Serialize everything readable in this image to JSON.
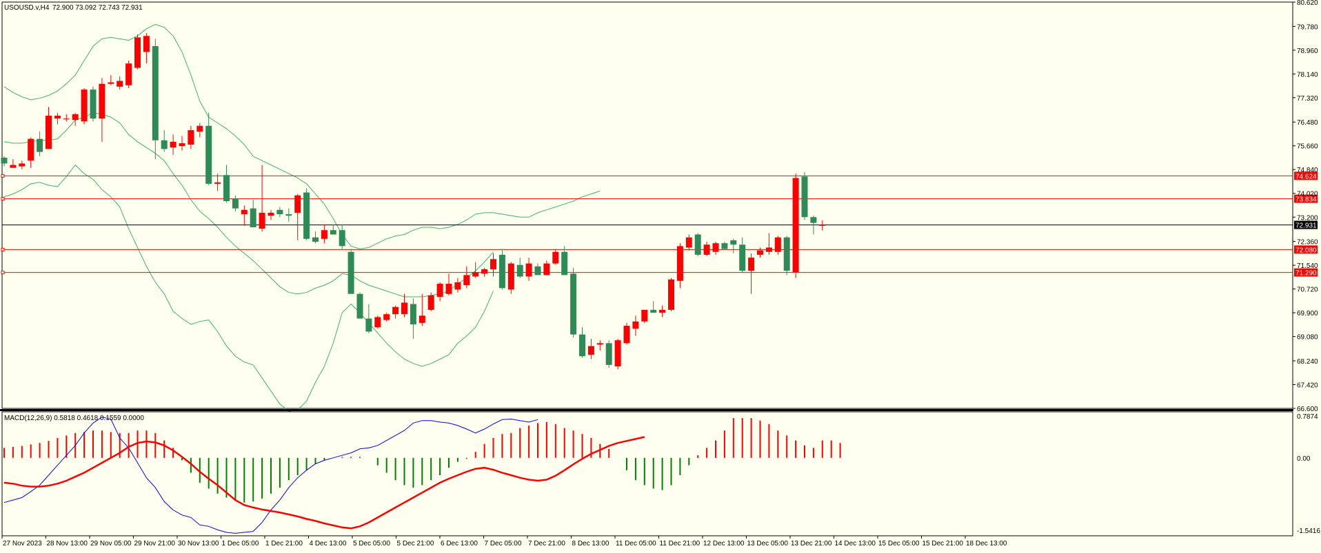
{
  "header": {
    "symbol_text": "USOUSD.v,H4",
    "ohlc_text": "72.900 73.092 72.743 72.931"
  },
  "macd": {
    "label": "MACD(12,26,9) 0.5818 0.4618 0.1559 0.0000"
  },
  "colors": {
    "background": "#fffff0",
    "bull": "#2e8b57",
    "bear": "#ff0000",
    "bands": "#3cb371",
    "hline": "#ff0000",
    "macd_signal": "#0000ff",
    "macd_main": "#ff0000",
    "hist_pos": "#ff0000",
    "hist_neg": "#008000"
  },
  "chart_data": {
    "type": "candlestick",
    "price_axis": {
      "min": 66.6,
      "max": 80.62,
      "ticks": [
        "80.620",
        "79.780",
        "78.960",
        "78.140",
        "77.320",
        "76.480",
        "75.660",
        "74.840",
        "74.020",
        "73.200",
        "72.360",
        "71.540",
        "70.720",
        "69.900",
        "69.080",
        "68.240",
        "67.420",
        "66.600"
      ]
    },
    "current_price": "72.931",
    "horizontal_levels": [
      "74.624",
      "73.834",
      "72.080",
      "71.290"
    ],
    "time_labels": [
      "27 Nov 2023",
      "28 Nov 13:00",
      "29 Nov 05:00",
      "29 Nov 21:00",
      "30 Nov 13:00",
      "1 Dec 05:00",
      "1 Dec 21:00",
      "4 Dec 13:00",
      "5 Dec 05:00",
      "5 Dec 21:00",
      "6 Dec 13:00",
      "7 Dec 05:00",
      "7 Dec 21:00",
      "8 Dec 13:00",
      "11 Dec 05:00",
      "11 Dec 21:00",
      "12 Dec 13:00",
      "13 Dec 05:00",
      "13 Dec 21:00",
      "14 Dec 13:00",
      "15 Dec 05:00",
      "15 Dec 21:00",
      "18 Dec 13:00"
    ],
    "candles": [
      {
        "o": 75.25,
        "h": 75.3,
        "l": 74.95,
        "c": 75.05
      },
      {
        "o": 74.9,
        "h": 75.2,
        "l": 74.9,
        "c": 75.0
      },
      {
        "o": 74.95,
        "h": 75.15,
        "l": 74.85,
        "c": 75.05
      },
      {
        "o": 75.15,
        "h": 75.95,
        "l": 74.9,
        "c": 75.9
      },
      {
        "o": 75.9,
        "h": 76.15,
        "l": 75.3,
        "c": 75.45
      },
      {
        "o": 75.55,
        "h": 77.0,
        "l": 75.55,
        "c": 76.7
      },
      {
        "o": 76.6,
        "h": 76.8,
        "l": 76.4,
        "c": 76.7
      },
      {
        "o": 76.6,
        "h": 76.75,
        "l": 76.5,
        "c": 76.6
      },
      {
        "o": 76.55,
        "h": 76.8,
        "l": 76.35,
        "c": 76.75
      },
      {
        "o": 76.5,
        "h": 77.65,
        "l": 76.4,
        "c": 77.6
      },
      {
        "o": 77.6,
        "h": 77.7,
        "l": 76.5,
        "c": 76.6
      },
      {
        "o": 76.6,
        "h": 78.0,
        "l": 75.8,
        "c": 77.8
      },
      {
        "o": 77.8,
        "h": 78.1,
        "l": 77.75,
        "c": 77.85
      },
      {
        "o": 77.7,
        "h": 78.05,
        "l": 77.6,
        "c": 77.9
      },
      {
        "o": 77.75,
        "h": 78.6,
        "l": 77.65,
        "c": 78.5
      },
      {
        "o": 78.35,
        "h": 79.5,
        "l": 78.3,
        "c": 79.4
      },
      {
        "o": 78.9,
        "h": 79.55,
        "l": 78.5,
        "c": 79.45
      },
      {
        "o": 79.1,
        "h": 79.35,
        "l": 75.2,
        "c": 75.85
      },
      {
        "o": 75.85,
        "h": 76.2,
        "l": 75.45,
        "c": 75.55
      },
      {
        "o": 75.6,
        "h": 76.05,
        "l": 75.35,
        "c": 75.8
      },
      {
        "o": 75.65,
        "h": 76.0,
        "l": 75.5,
        "c": 75.75
      },
      {
        "o": 75.7,
        "h": 76.35,
        "l": 75.55,
        "c": 76.2
      },
      {
        "o": 76.15,
        "h": 76.45,
        "l": 75.95,
        "c": 76.35
      },
      {
        "o": 76.35,
        "h": 76.8,
        "l": 74.3,
        "c": 74.35
      },
      {
        "o": 74.35,
        "h": 74.7,
        "l": 74.1,
        "c": 74.4
      },
      {
        "o": 74.65,
        "h": 75.0,
        "l": 73.7,
        "c": 73.75
      },
      {
        "o": 73.85,
        "h": 73.95,
        "l": 73.4,
        "c": 73.5
      },
      {
        "o": 73.3,
        "h": 73.6,
        "l": 72.9,
        "c": 73.45
      },
      {
        "o": 73.5,
        "h": 73.8,
        "l": 72.9,
        "c": 72.85
      },
      {
        "o": 72.8,
        "h": 75.0,
        "l": 72.7,
        "c": 73.35
      },
      {
        "o": 73.25,
        "h": 73.45,
        "l": 73.1,
        "c": 73.35
      },
      {
        "o": 73.45,
        "h": 73.55,
        "l": 73.2,
        "c": 73.3
      },
      {
        "o": 73.3,
        "h": 73.5,
        "l": 73.05,
        "c": 73.25
      },
      {
        "o": 73.35,
        "h": 74.0,
        "l": 72.4,
        "c": 73.95
      },
      {
        "o": 74.05,
        "h": 74.2,
        "l": 72.4,
        "c": 72.45
      },
      {
        "o": 72.5,
        "h": 72.7,
        "l": 72.3,
        "c": 72.35
      },
      {
        "o": 72.45,
        "h": 72.95,
        "l": 72.3,
        "c": 72.75
      },
      {
        "o": 72.75,
        "h": 72.95,
        "l": 72.6,
        "c": 72.6
      },
      {
        "o": 72.75,
        "h": 72.95,
        "l": 72.1,
        "c": 72.2
      },
      {
        "o": 72.0,
        "h": 72.1,
        "l": 70.6,
        "c": 70.55
      },
      {
        "o": 70.55,
        "h": 70.6,
        "l": 69.7,
        "c": 69.7
      },
      {
        "o": 69.7,
        "h": 70.2,
        "l": 69.2,
        "c": 69.25
      },
      {
        "o": 69.4,
        "h": 69.8,
        "l": 69.35,
        "c": 69.75
      },
      {
        "o": 69.65,
        "h": 69.9,
        "l": 69.6,
        "c": 69.85
      },
      {
        "o": 69.85,
        "h": 70.15,
        "l": 69.7,
        "c": 70.1
      },
      {
        "o": 69.85,
        "h": 70.55,
        "l": 69.75,
        "c": 70.25
      },
      {
        "o": 70.2,
        "h": 70.4,
        "l": 69.0,
        "c": 69.5
      },
      {
        "o": 69.55,
        "h": 70.55,
        "l": 69.45,
        "c": 69.8
      },
      {
        "o": 70.0,
        "h": 70.6,
        "l": 69.95,
        "c": 70.5
      },
      {
        "o": 70.45,
        "h": 70.95,
        "l": 70.3,
        "c": 70.9
      },
      {
        "o": 70.55,
        "h": 71.25,
        "l": 70.5,
        "c": 70.9
      },
      {
        "o": 70.7,
        "h": 71.1,
        "l": 70.6,
        "c": 70.95
      },
      {
        "o": 70.85,
        "h": 71.5,
        "l": 70.75,
        "c": 71.2
      },
      {
        "o": 71.15,
        "h": 71.65,
        "l": 71.1,
        "c": 71.3
      },
      {
        "o": 71.25,
        "h": 71.45,
        "l": 71.15,
        "c": 71.4
      },
      {
        "o": 71.4,
        "h": 71.95,
        "l": 71.15,
        "c": 71.75
      },
      {
        "o": 71.9,
        "h": 72.1,
        "l": 70.7,
        "c": 70.75
      },
      {
        "o": 70.7,
        "h": 71.65,
        "l": 70.55,
        "c": 71.6
      },
      {
        "o": 71.55,
        "h": 71.8,
        "l": 71.1,
        "c": 71.15
      },
      {
        "o": 71.15,
        "h": 71.8,
        "l": 71.0,
        "c": 71.6
      },
      {
        "o": 71.5,
        "h": 71.6,
        "l": 71.2,
        "c": 71.2
      },
      {
        "o": 71.2,
        "h": 71.7,
        "l": 71.2,
        "c": 71.6
      },
      {
        "o": 71.6,
        "h": 72.1,
        "l": 71.55,
        "c": 72.0
      },
      {
        "o": 72.0,
        "h": 72.2,
        "l": 71.2,
        "c": 71.2
      },
      {
        "o": 71.25,
        "h": 71.45,
        "l": 69.05,
        "c": 69.15
      },
      {
        "o": 69.15,
        "h": 69.4,
        "l": 68.35,
        "c": 68.4
      },
      {
        "o": 68.45,
        "h": 69.0,
        "l": 68.3,
        "c": 68.75
      },
      {
        "o": 68.8,
        "h": 68.95,
        "l": 68.6,
        "c": 68.85
      },
      {
        "o": 68.85,
        "h": 68.95,
        "l": 68.0,
        "c": 68.1
      },
      {
        "o": 68.05,
        "h": 69.0,
        "l": 67.95,
        "c": 68.95
      },
      {
        "o": 68.85,
        "h": 69.55,
        "l": 68.8,
        "c": 69.45
      },
      {
        "o": 69.35,
        "h": 69.8,
        "l": 69.1,
        "c": 69.6
      },
      {
        "o": 69.6,
        "h": 70.0,
        "l": 69.55,
        "c": 70.0
      },
      {
        "o": 70.0,
        "h": 70.3,
        "l": 69.9,
        "c": 69.9
      },
      {
        "o": 69.9,
        "h": 70.15,
        "l": 69.75,
        "c": 70.0
      },
      {
        "o": 70.0,
        "h": 71.1,
        "l": 69.95,
        "c": 71.05
      },
      {
        "o": 71.0,
        "h": 72.3,
        "l": 70.75,
        "c": 72.2
      },
      {
        "o": 72.15,
        "h": 72.6,
        "l": 72.05,
        "c": 72.5
      },
      {
        "o": 72.6,
        "h": 72.65,
        "l": 71.85,
        "c": 71.9
      },
      {
        "o": 71.9,
        "h": 72.35,
        "l": 71.85,
        "c": 72.25
      },
      {
        "o": 72.0,
        "h": 72.35,
        "l": 71.9,
        "c": 72.3
      },
      {
        "o": 72.3,
        "h": 72.35,
        "l": 72.1,
        "c": 72.1
      },
      {
        "o": 72.4,
        "h": 72.45,
        "l": 71.95,
        "c": 72.25
      },
      {
        "o": 72.25,
        "h": 72.5,
        "l": 71.3,
        "c": 71.35
      },
      {
        "o": 71.35,
        "h": 71.95,
        "l": 70.55,
        "c": 71.8
      },
      {
        "o": 71.9,
        "h": 72.15,
        "l": 71.8,
        "c": 72.05
      },
      {
        "o": 72.0,
        "h": 72.65,
        "l": 71.9,
        "c": 72.15
      },
      {
        "o": 72.0,
        "h": 72.55,
        "l": 71.9,
        "c": 72.5
      },
      {
        "o": 72.5,
        "h": 72.55,
        "l": 71.2,
        "c": 71.35
      },
      {
        "o": 71.3,
        "h": 74.7,
        "l": 71.1,
        "c": 74.55
      },
      {
        "o": 74.6,
        "h": 74.75,
        "l": 73.1,
        "c": 73.2
      },
      {
        "o": 73.2,
        "h": 73.25,
        "l": 72.6,
        "c": 73.0
      },
      {
        "o": 72.9,
        "h": 73.09,
        "l": 72.74,
        "c": 72.93
      }
    ],
    "bollinger": {
      "upper": [
        77.7,
        77.5,
        77.35,
        77.25,
        77.3,
        77.4,
        77.55,
        77.8,
        78.1,
        78.6,
        79.1,
        79.35,
        79.4,
        79.35,
        79.3,
        79.45,
        79.7,
        79.85,
        79.75,
        79.45,
        78.9,
        78.1,
        77.2,
        76.65,
        76.45,
        76.25,
        76.0,
        75.7,
        75.3,
        75.15,
        75.0,
        74.85,
        74.7,
        74.55,
        74.35,
        74.0,
        73.65,
        73.15,
        72.6,
        72.2,
        72.1,
        72.15,
        72.3,
        72.45,
        72.55,
        72.6,
        72.75,
        72.85,
        72.85,
        72.8,
        72.85,
        72.95,
        73.1,
        73.3,
        73.35,
        73.35,
        73.3,
        73.25,
        73.2,
        73.2,
        73.35,
        73.45,
        73.55,
        73.65,
        73.75,
        73.9,
        74.0,
        74.1
      ],
      "middle": [
        75.8,
        75.75,
        75.75,
        75.8,
        75.85,
        75.85,
        75.9,
        76.2,
        76.55,
        76.65,
        76.8,
        76.75,
        76.65,
        76.45,
        76.05,
        75.8,
        75.6,
        75.4,
        75.15,
        74.7,
        74.3,
        73.8,
        73.4,
        73.15,
        72.85,
        72.5,
        72.2,
        71.95,
        71.7,
        71.4,
        71.1,
        70.8,
        70.6,
        70.55,
        70.6,
        70.75,
        70.85,
        71.0,
        71.25,
        71.2,
        71.0,
        70.85,
        70.75,
        70.65,
        70.55,
        70.45,
        70.45,
        70.45,
        70.5,
        70.55,
        70.65,
        70.9,
        71.1,
        71.35,
        71.65,
        72.0
      ]
    },
    "macd_indicator": {
      "y_range": [
        -1.5416,
        0.7874
      ],
      "ticks": [
        "0.7874",
        "0.00",
        "-1.5416"
      ],
      "histogram": [
        0.2,
        0.22,
        0.24,
        0.27,
        0.3,
        0.34,
        0.4,
        0.45,
        0.5,
        0.52,
        0.55,
        0.55,
        0.52,
        0.5,
        0.5,
        0.55,
        0.55,
        0.5,
        0.35,
        0.2,
        -0.05,
        -0.3,
        -0.5,
        -0.62,
        -0.72,
        -0.8,
        -0.85,
        -0.9,
        -0.88,
        -0.82,
        -0.72,
        -0.6,
        -0.45,
        -0.35,
        -0.25,
        -0.12,
        -0.05,
        0.0,
        0.02,
        0.02,
        0.02,
        0.0,
        -0.15,
        -0.3,
        -0.45,
        -0.55,
        -0.6,
        -0.55,
        -0.45,
        -0.35,
        -0.2,
        -0.08,
        -0.02,
        0.12,
        0.28,
        0.4,
        0.48,
        0.5,
        0.6,
        0.65,
        0.7,
        0.72,
        0.68,
        0.6,
        0.55,
        0.48,
        0.4,
        0.28,
        0.18,
        0.0,
        -0.25,
        -0.45,
        -0.55,
        -0.62,
        -0.65,
        -0.55,
        -0.35,
        -0.15,
        0.05,
        0.2,
        0.35,
        0.55,
        0.8,
        0.8,
        0.8,
        0.75,
        0.68,
        0.55,
        0.45,
        0.35,
        0.25,
        0.2,
        0.35,
        0.35,
        0.3
      ],
      "main": [
        -0.5,
        -0.52,
        -0.56,
        -0.58,
        -0.58,
        -0.56,
        -0.52,
        -0.46,
        -0.38,
        -0.3,
        -0.2,
        -0.1,
        0.0,
        0.1,
        0.22,
        0.3,
        0.33,
        0.31,
        0.25,
        0.15,
        0.02,
        -0.12,
        -0.28,
        -0.42,
        -0.55,
        -0.7,
        -0.85,
        -0.95,
        -1.0,
        -1.04,
        -1.07,
        -1.1,
        -1.14,
        -1.18,
        -1.23,
        -1.27,
        -1.32,
        -1.36,
        -1.4,
        -1.42,
        -1.38,
        -1.3,
        -1.2,
        -1.1,
        -1.0,
        -0.9,
        -0.8,
        -0.7,
        -0.6,
        -0.5,
        -0.42,
        -0.35,
        -0.28,
        -0.22,
        -0.2,
        -0.24,
        -0.3,
        -0.35,
        -0.4,
        -0.44,
        -0.46,
        -0.44,
        -0.36,
        -0.25,
        -0.13,
        -0.02,
        0.08,
        0.16,
        0.24,
        0.3,
        0.34,
        0.38,
        0.42
      ],
      "signal": [
        -0.9,
        -0.85,
        -0.8,
        -0.68,
        -0.55,
        -0.35,
        -0.15,
        0.05,
        0.25,
        0.5,
        0.7,
        0.82,
        0.78,
        0.4,
        0.2,
        -0.1,
        -0.4,
        -0.6,
        -0.88,
        -1.05,
        -1.15,
        -1.2,
        -1.35,
        -1.38,
        -1.45,
        -1.5,
        -1.52,
        -1.5,
        -1.48,
        -1.3,
        -1.05,
        -0.85,
        -0.6,
        -0.4,
        -0.25,
        -0.12,
        -0.05,
        0.0,
        0.05,
        0.1,
        0.18,
        0.2,
        0.25,
        0.35,
        0.45,
        0.55,
        0.7,
        0.75,
        0.75,
        0.72,
        0.7,
        0.65,
        0.58,
        0.5,
        0.58,
        0.68,
        0.77,
        0.78,
        0.75,
        0.72,
        0.77
      ]
    }
  }
}
